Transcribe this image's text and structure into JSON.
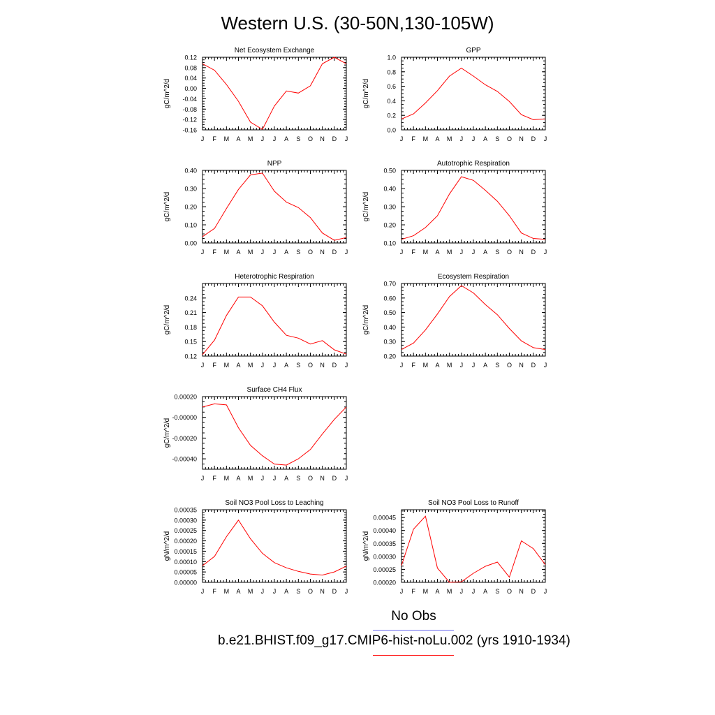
{
  "page": {
    "title": "Western U.S. (30-50N,130-105W)"
  },
  "legend": {
    "items": [
      {
        "label": "No Obs",
        "color": "#6b6bf0"
      },
      {
        "label": "b.e21.BHIST.f09_g17.CMIP6-hist-noLu.002 (yrs 1910-1934)",
        "color": "#ff0000"
      }
    ]
  },
  "series_color": "#ff0000",
  "chart_data": [
    {
      "type": "line",
      "title": "Net Ecosystem Exchange",
      "ylabel": "gC/m^2/d",
      "xlabel": "",
      "x": [
        "J",
        "F",
        "M",
        "A",
        "M",
        "J",
        "J",
        "A",
        "S",
        "O",
        "N",
        "D",
        "J"
      ],
      "ylim": [
        -0.16,
        0.12
      ],
      "yticks": [
        "0.12",
        "0.08",
        "0.04",
        "0.00",
        "-0.04",
        "-0.08",
        "-0.12",
        "-0.16"
      ],
      "series": [
        {
          "values": [
            0.095,
            0.07,
            0.015,
            -0.05,
            -0.13,
            -0.158,
            -0.068,
            -0.01,
            -0.018,
            0.01,
            0.095,
            0.12,
            0.095
          ]
        }
      ]
    },
    {
      "type": "line",
      "title": "GPP",
      "ylabel": "gC/m^2/d",
      "xlabel": "",
      "x": [
        "J",
        "F",
        "M",
        "A",
        "M",
        "J",
        "J",
        "A",
        "S",
        "O",
        "N",
        "D",
        "J"
      ],
      "ylim": [
        0.0,
        1.0
      ],
      "yticks": [
        "1.0",
        "0.8",
        "0.6",
        "0.4",
        "0.2",
        "0.0"
      ],
      "series": [
        {
          "values": [
            0.15,
            0.22,
            0.37,
            0.54,
            0.74,
            0.85,
            0.74,
            0.62,
            0.53,
            0.39,
            0.21,
            0.14,
            0.15
          ]
        }
      ]
    },
    {
      "type": "line",
      "title": "NPP",
      "ylabel": "gC/m^2/d",
      "xlabel": "",
      "x": [
        "J",
        "F",
        "M",
        "A",
        "M",
        "J",
        "J",
        "A",
        "S",
        "O",
        "N",
        "D",
        "J"
      ],
      "ylim": [
        0.0,
        0.4
      ],
      "yticks": [
        "0.40",
        "0.30",
        "0.20",
        "0.10",
        "0.00"
      ],
      "series": [
        {
          "values": [
            0.035,
            0.08,
            0.19,
            0.295,
            0.375,
            0.385,
            0.285,
            0.225,
            0.195,
            0.14,
            0.055,
            0.015,
            0.03
          ]
        }
      ]
    },
    {
      "type": "line",
      "title": "Autotrophic Respiration",
      "ylabel": "gC/m^2/d",
      "xlabel": "",
      "x": [
        "J",
        "F",
        "M",
        "A",
        "M",
        "J",
        "J",
        "A",
        "S",
        "O",
        "N",
        "D",
        "J"
      ],
      "ylim": [
        0.1,
        0.5
      ],
      "yticks": [
        "0.50",
        "0.40",
        "0.30",
        "0.20",
        "0.10"
      ],
      "series": [
        {
          "values": [
            0.12,
            0.14,
            0.185,
            0.25,
            0.37,
            0.465,
            0.445,
            0.39,
            0.33,
            0.25,
            0.155,
            0.125,
            0.12
          ]
        }
      ]
    },
    {
      "type": "line",
      "title": "Heterotrophic Respiration",
      "ylabel": "gC/m^2/d",
      "xlabel": "",
      "x": [
        "J",
        "F",
        "M",
        "A",
        "M",
        "J",
        "J",
        "A",
        "S",
        "O",
        "N",
        "D",
        "J"
      ],
      "ylim": [
        0.12,
        0.27
      ],
      "yticks": [
        "0.24",
        "0.21",
        "0.18",
        "0.15",
        "0.12"
      ],
      "series": [
        {
          "values": [
            0.123,
            0.153,
            0.204,
            0.242,
            0.242,
            0.224,
            0.19,
            0.163,
            0.157,
            0.145,
            0.152,
            0.133,
            0.124
          ]
        }
      ]
    },
    {
      "type": "line",
      "title": "Ecosystem Respiration",
      "ylabel": "gC/m^2/d",
      "xlabel": "",
      "x": [
        "J",
        "F",
        "M",
        "A",
        "M",
        "J",
        "J",
        "A",
        "S",
        "O",
        "N",
        "D",
        "J"
      ],
      "ylim": [
        0.2,
        0.7
      ],
      "yticks": [
        "0.70",
        "0.60",
        "0.50",
        "0.40",
        "0.30",
        "0.20"
      ],
      "series": [
        {
          "values": [
            0.245,
            0.29,
            0.38,
            0.49,
            0.61,
            0.685,
            0.635,
            0.555,
            0.485,
            0.39,
            0.305,
            0.258,
            0.245
          ]
        }
      ]
    },
    {
      "type": "line",
      "title": "Surface CH4 Flux",
      "ylabel": "gC/m^2/d",
      "xlabel": "",
      "x": [
        "J",
        "F",
        "M",
        "A",
        "M",
        "J",
        "J",
        "A",
        "S",
        "O",
        "N",
        "D",
        "J"
      ],
      "ylim": [
        -0.0005,
        0.0002
      ],
      "yticks": [
        "0.00020",
        "-0.00000",
        "-0.00020",
        "-0.00040"
      ],
      "series": [
        {
          "values": [
            0.0001,
            0.00013,
            0.00012,
            -0.0001,
            -0.00027,
            -0.00037,
            -0.00045,
            -0.00046,
            -0.0004,
            -0.00031,
            -0.00016,
            -2e-05,
            0.0001
          ]
        }
      ]
    },
    {
      "type": "line",
      "title": "Soil NO3 Pool Loss to Leaching",
      "ylabel": "gN/m^2/d",
      "xlabel": "",
      "x": [
        "J",
        "F",
        "M",
        "A",
        "M",
        "J",
        "J",
        "A",
        "S",
        "O",
        "N",
        "D",
        "J"
      ],
      "ylim": [
        0.0,
        0.00035
      ],
      "yticks": [
        "0.00035",
        "0.00030",
        "0.00025",
        "0.00020",
        "0.00015",
        "0.00010",
        "0.00005",
        "0.00000"
      ],
      "series": [
        {
          "values": [
            8e-05,
            0.000125,
            0.00022,
            0.0003,
            0.00021,
            0.00014,
            9.5e-05,
            7e-05,
            5.3e-05,
            4e-05,
            3.5e-05,
            5e-05,
            7.8e-05
          ]
        }
      ]
    },
    {
      "type": "line",
      "title": "Soil NO3 Pool Loss to Runoff",
      "ylabel": "gN/m^2/d",
      "xlabel": "",
      "x": [
        "J",
        "F",
        "M",
        "A",
        "M",
        "J",
        "J",
        "A",
        "S",
        "O",
        "N",
        "D",
        "J"
      ],
      "ylim": [
        0.0002,
        0.00048
      ],
      "yticks": [
        "0.00045",
        "0.00040",
        "0.00035",
        "0.00030",
        "0.00025",
        "0.00020"
      ],
      "series": [
        {
          "values": [
            0.000265,
            0.000405,
            0.000455,
            0.000255,
            0.0002,
            0.000202,
            0.000235,
            0.000262,
            0.000278,
            0.00022,
            0.00036,
            0.00033,
            0.000268
          ]
        }
      ]
    }
  ]
}
